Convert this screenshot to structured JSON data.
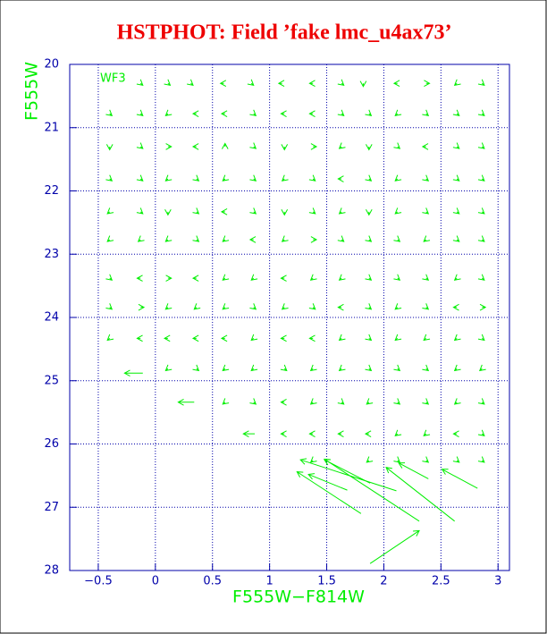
{
  "chart_data": {
    "type": "quiver",
    "title": "HSTPHOT: Field ’fake lmc_u4ax73’",
    "x_label": "F555W−F814W",
    "y_label": "F555W",
    "annotation": "WF3",
    "color": "#00ee00",
    "axis_color": "#0000aa",
    "title_color": "#ee0000",
    "grid": true,
    "xlim": [
      -0.75,
      3.1
    ],
    "ylim": [
      28,
      20
    ],
    "xticks": [
      {
        "value": -0.5,
        "label": "−0.5"
      },
      0,
      0.5,
      1,
      1.5,
      2,
      2.5,
      3
    ],
    "yticks": [
      20,
      21,
      22,
      23,
      24,
      25,
      26,
      27,
      28
    ],
    "rows": [
      {
        "y": 20.3,
        "x": [
          -0.13,
          0.11,
          0.31,
          0.6,
          0.84,
          1.11,
          1.38,
          1.63,
          1.82,
          2.12,
          2.37,
          2.64,
          2.86
        ],
        "u": [
          0.02,
          0.02,
          0.02,
          -0.03,
          0.02,
          -0.03,
          -0.03,
          0.02,
          0,
          -0.03,
          0.03,
          -0.02,
          0.02
        ],
        "v": [
          0.03,
          0.03,
          0.03,
          0,
          0.03,
          0,
          0,
          0.03,
          0.05,
          0,
          0,
          0.03,
          0.03
        ]
      },
      {
        "y": 20.78,
        "x": [
          -0.4,
          -0.13,
          0.11,
          0.36,
          0.61,
          0.86,
          1.13,
          1.38,
          1.63,
          1.87,
          2.12,
          2.37,
          2.64,
          2.86
        ],
        "u": [
          0.02,
          0.02,
          -0.02,
          -0.03,
          -0.03,
          0.02,
          -0.03,
          -0.03,
          0.02,
          0.02,
          -0.02,
          0.02,
          0.02,
          0.02
        ],
        "v": [
          0.03,
          0.03,
          0.03,
          0,
          0,
          0.03,
          0,
          0,
          0.03,
          0.03,
          0.03,
          0.03,
          0.03,
          0.03
        ]
      },
      {
        "y": 21.3,
        "x": [
          -0.4,
          -0.13,
          0.11,
          0.36,
          0.61,
          0.86,
          1.13,
          1.38,
          1.63,
          1.87,
          2.12,
          2.37,
          2.64,
          2.86
        ],
        "u": [
          0,
          0.02,
          0.03,
          -0.03,
          0,
          0.02,
          0,
          0.03,
          -0.02,
          0,
          0.02,
          -0.03,
          0.02,
          0.02
        ],
        "v": [
          0.05,
          0.03,
          0,
          0,
          -0.05,
          0.03,
          0.05,
          0,
          0.03,
          0.05,
          0.03,
          0,
          0.03,
          0.03
        ]
      },
      {
        "y": 21.81,
        "x": [
          -0.4,
          -0.13,
          0.11,
          0.36,
          0.61,
          0.86,
          1.13,
          1.38,
          1.63,
          1.87,
          2.12,
          2.37,
          2.64,
          2.86
        ],
        "u": [
          0.02,
          0.02,
          -0.02,
          0.02,
          -0.02,
          0.02,
          -0.02,
          0.02,
          -0.03,
          0.02,
          -0.02,
          0.02,
          0.02,
          0.02
        ],
        "v": [
          0.03,
          0.03,
          0.03,
          0.03,
          0.03,
          0.03,
          0.03,
          0.03,
          0,
          0.03,
          0.03,
          0.03,
          0.03,
          0.03
        ]
      },
      {
        "y": 22.33,
        "x": [
          -0.4,
          -0.13,
          0.11,
          0.36,
          0.61,
          0.86,
          1.13,
          1.38,
          1.63,
          1.87,
          2.12,
          2.37,
          2.64,
          2.86
        ],
        "u": [
          -0.02,
          0.02,
          0,
          0.02,
          -0.03,
          0.02,
          0,
          0.02,
          -0.02,
          0,
          -0.02,
          0.02,
          0.02,
          0.02
        ],
        "v": [
          0.03,
          0.03,
          0.05,
          0.03,
          0,
          0.03,
          0.05,
          0.03,
          0.03,
          0.05,
          0.03,
          0.03,
          0.03,
          0.03
        ]
      },
      {
        "y": 22.77,
        "x": [
          -0.4,
          -0.13,
          0.11,
          0.36,
          0.61,
          0.86,
          1.13,
          1.38,
          1.63,
          1.87,
          2.12,
          2.37,
          2.64,
          2.86
        ],
        "u": [
          -0.02,
          -0.02,
          -0.02,
          0.02,
          -0.02,
          -0.03,
          -0.02,
          0.03,
          0.02,
          0.02,
          0.02,
          -0.02,
          0.02,
          0.02
        ],
        "v": [
          0.03,
          0.03,
          0.03,
          0.03,
          0.03,
          0,
          0.03,
          0,
          0.03,
          0.03,
          0.03,
          0.03,
          0.03,
          0.03
        ]
      },
      {
        "y": 23.38,
        "x": [
          -0.4,
          -0.13,
          0.11,
          0.36,
          0.61,
          0.86,
          1.13,
          1.38,
          1.63,
          1.87,
          2.12,
          2.37,
          2.64,
          2.86
        ],
        "u": [
          0.02,
          -0.03,
          0.03,
          -0.03,
          -0.02,
          -0.02,
          -0.03,
          -0.02,
          -0.02,
          0.02,
          0.02,
          0.02,
          -0.02,
          0.02
        ],
        "v": [
          0.03,
          0,
          0,
          0,
          0.03,
          0.03,
          0,
          0.03,
          0.03,
          0.03,
          0.03,
          0.03,
          0.03,
          0.03
        ]
      },
      {
        "y": 23.84,
        "x": [
          -0.4,
          -0.13,
          0.11,
          0.36,
          0.61,
          0.86,
          1.13,
          1.38,
          1.63,
          1.87,
          2.12,
          2.37,
          2.64,
          2.86
        ],
        "u": [
          0.02,
          0.03,
          -0.02,
          -0.02,
          -0.02,
          0.02,
          -0.02,
          0.02,
          -0.03,
          0.02,
          -0.02,
          0.02,
          -0.03,
          0.03
        ],
        "v": [
          0.03,
          0,
          0.03,
          0.03,
          0.03,
          0.03,
          0.03,
          0.03,
          0,
          0.03,
          0.03,
          0.03,
          0,
          0
        ]
      },
      {
        "y": 24.33,
        "x": [
          -0.4,
          -0.13,
          0.11,
          0.36,
          0.61,
          0.86,
          1.13,
          1.38,
          1.63,
          1.87,
          2.12,
          2.37,
          2.64,
          2.86
        ],
        "u": [
          -0.02,
          -0.03,
          -0.03,
          -0.03,
          -0.03,
          -0.02,
          -0.03,
          -0.03,
          -0.02,
          0.02,
          -0.02,
          -0.02,
          -0.02,
          0.02
        ],
        "v": [
          0.03,
          0,
          0,
          0,
          0,
          0.03,
          0,
          0,
          0.03,
          0.03,
          0.03,
          0.03,
          0.03,
          0.03
        ]
      },
      {
        "y": 24.81,
        "x": [
          0.11,
          0.36,
          0.61,
          0.86,
          1.13,
          1.38,
          1.63,
          1.87,
          2.12,
          2.37,
          2.64,
          2.86
        ],
        "u": [
          -0.02,
          0.02,
          -0.02,
          -0.02,
          0.02,
          -0.02,
          -0.02,
          0.02,
          0.02,
          0.02,
          -0.02,
          -0.02
        ],
        "v": [
          0.03,
          0.03,
          0.03,
          0.03,
          0.03,
          0.03,
          0.03,
          0.03,
          0.03,
          0.03,
          0.03,
          0.03
        ]
      },
      {
        "y": 24.88,
        "x": [
          -0.11
        ],
        "u": [
          -0.16
        ],
        "v": [
          0
        ]
      },
      {
        "y": 25.34,
        "x": [
          0.34,
          0.61,
          0.86,
          1.13,
          1.38,
          1.63,
          1.87,
          2.12,
          2.37,
          2.64,
          2.86
        ],
        "u": [
          -0.14,
          -0.02,
          0.02,
          -0.03,
          -0.02,
          0.02,
          -0.02,
          0.02,
          0.02,
          -0.02,
          0.02
        ],
        "v": [
          0,
          0.03,
          0.03,
          0,
          0.03,
          0.03,
          0.03,
          0.03,
          0.03,
          0.03,
          0.03
        ]
      },
      {
        "y": 25.84,
        "x": [
          0.87,
          1.13,
          1.38,
          1.63,
          1.87,
          2.12,
          2.37,
          2.64,
          2.86
        ],
        "u": [
          -0.1,
          -0.03,
          -0.03,
          -0.03,
          -0.03,
          -0.02,
          -0.02,
          -0.03,
          0.02
        ],
        "v": [
          0,
          0,
          0,
          0,
          0,
          0.03,
          0.03,
          0,
          0.03
        ]
      },
      {
        "y": 26.26,
        "x": [
          1.38,
          1.87,
          2.12,
          2.37,
          2.64,
          2.86
        ],
        "u": [
          -0.02,
          -0.02,
          0.02,
          0.02,
          0.02,
          0.02
        ],
        "v": [
          0.03,
          0.03,
          0.03,
          0.03,
          0.03,
          0.03
        ]
      },
      {
        "y": 26.55,
        "x": [
          2.39
        ],
        "u": [
          -0.26
        ],
        "v": [
          -0.25
        ]
      },
      {
        "y": 26.62,
        "x": [
          1.88
        ],
        "u": [
          -0.4
        ],
        "v": [
          -0.37
        ]
      },
      {
        "y": 26.7,
        "x": [
          2.82
        ],
        "u": [
          -0.31
        ],
        "v": [
          -0.3
        ]
      },
      {
        "y": 26.73,
        "x": [
          1.68
        ],
        "u": [
          -0.34
        ],
        "v": [
          -0.25
        ]
      },
      {
        "y": 26.74,
        "x": [
          2.11
        ],
        "u": [
          -0.84
        ],
        "v": [
          -0.49
        ]
      },
      {
        "y": 27.1,
        "x": [
          1.8
        ],
        "u": [
          -0.56
        ],
        "v": [
          -0.66
        ]
      },
      {
        "y": 27.22,
        "x": [
          2.31,
          2.62
        ],
        "u": [
          -0.83,
          -0.6
        ],
        "v": [
          -0.98,
          -0.85
        ]
      },
      {
        "y": 27.89,
        "x": [
          1.88
        ],
        "u": [
          0.43
        ],
        "v": [
          -0.52
        ]
      }
    ]
  }
}
